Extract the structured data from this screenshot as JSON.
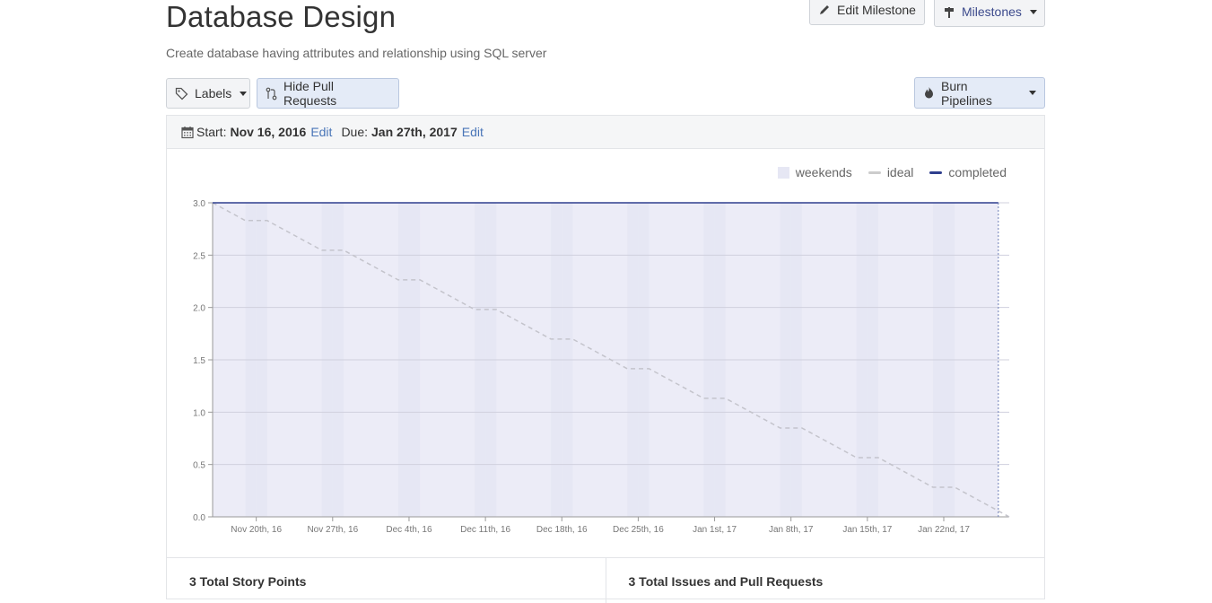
{
  "header": {
    "title": "Database Design",
    "description": "Create database having attributes and relationship using SQL server"
  },
  "toolbar": {
    "edit_milestone": "Edit Milestone",
    "milestones": "Milestones",
    "labels": "Labels",
    "hide_pull_requests": "Hide Pull Requests",
    "burn_pipelines": "Burn Pipelines"
  },
  "dates": {
    "start_label": "Start:",
    "start_value": "Nov 16, 2016",
    "start_edit": "Edit",
    "due_label": "Due:",
    "due_value": "Jan 27th, 2017",
    "due_edit": "Edit"
  },
  "legend": {
    "weekends": "weekends",
    "ideal": "ideal",
    "completed": "completed"
  },
  "colors": {
    "weekend": "#e6e7f4",
    "plot_bg": "#ececf7",
    "ideal": "#c4c4cc",
    "completed": "#2f3f8e",
    "link": "#4a76b8"
  },
  "chart_data": {
    "type": "line",
    "x_start": "2016-11-16",
    "x_end": "2017-01-27",
    "ylim": [
      0,
      3.0
    ],
    "yticks": [
      "0.0",
      "0.5",
      "1.0",
      "1.5",
      "2.0",
      "2.5",
      "3.0"
    ],
    "xtick_labels": [
      "Nov 20th, 16",
      "Nov 27th, 16",
      "Dec 4th, 16",
      "Dec 11th, 16",
      "Dec 18th, 16",
      "Dec 25th, 16",
      "Jan 1st, 17",
      "Jan 8th, 17",
      "Jan 15th, 17",
      "Jan 22nd, 17"
    ],
    "xtick_dates": [
      "2016-11-20",
      "2016-11-27",
      "2016-12-04",
      "2016-12-11",
      "2016-12-18",
      "2016-12-25",
      "2017-01-01",
      "2017-01-08",
      "2017-01-15",
      "2017-01-22"
    ],
    "series": [
      {
        "name": "ideal",
        "x": [
          "2016-11-16",
          "2017-01-27"
        ],
        "y": [
          3.0,
          0.0
        ]
      },
      {
        "name": "completed",
        "x": [
          "2016-11-16",
          "2017-01-27"
        ],
        "y": [
          3.0,
          3.0
        ]
      }
    ],
    "grid": true,
    "legend_position": "top-right"
  },
  "summary": {
    "story_points": "3 Total Story Points",
    "issues": "3 Total Issues and Pull Requests"
  }
}
